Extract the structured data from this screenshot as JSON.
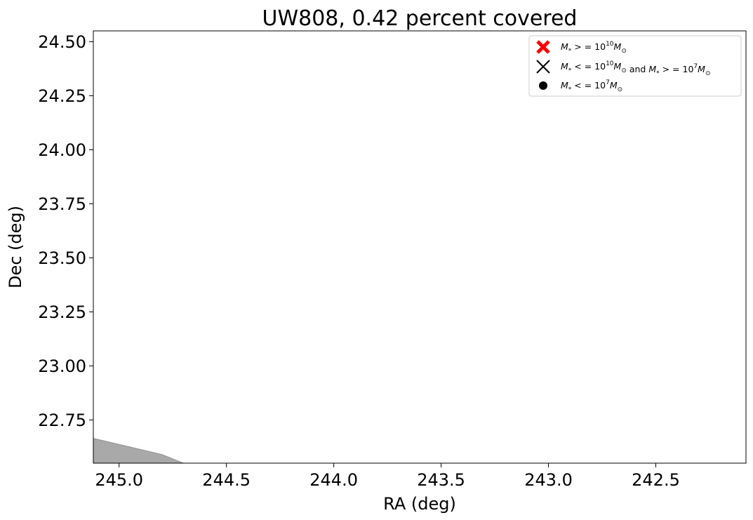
{
  "chart_data": {
    "type": "area",
    "title": "UW808, 0.42 percent covered",
    "xlabel": "RA (deg)",
    "ylabel": "Dec (deg)",
    "xlim": [
      245.12,
      242.08
    ],
    "ylim": [
      22.55,
      24.55
    ],
    "x_inverted": true,
    "grid": false,
    "legend_position": "top-right",
    "x_ticks": [
      245.0,
      244.5,
      244.0,
      243.5,
      243.0,
      242.5
    ],
    "x_tick_labels": [
      "245.0",
      "244.5",
      "244.0",
      "243.5",
      "243.0",
      "242.5"
    ],
    "y_ticks": [
      22.75,
      23.0,
      23.25,
      23.5,
      23.75,
      24.0,
      24.25,
      24.5
    ],
    "y_tick_labels": [
      "22.75",
      "23.00",
      "23.25",
      "23.50",
      "23.75",
      "24.00",
      "24.25",
      "24.50"
    ],
    "coverage_polygon": {
      "color": "#a9a9a9",
      "points": [
        [
          245.12,
          22.665
        ],
        [
          244.8,
          22.59
        ],
        [
          244.7,
          22.55
        ],
        [
          245.12,
          22.55
        ]
      ]
    },
    "legend": [
      {
        "marker": "bold-x",
        "color": "#ff0000",
        "main": "M",
        "sub": "*",
        "rel": " > = 10",
        "sup": "10",
        "tail": "M",
        "tail_sub": "⊙",
        "extra": ""
      },
      {
        "marker": "thin-x",
        "color": "#000000",
        "main": "M",
        "sub": "*",
        "rel": " < = 10",
        "sup": "10",
        "tail": "M",
        "tail_sub": "⊙",
        "extra": " and "
      },
      {
        "marker": "dot",
        "color": "#000000",
        "main": "M",
        "sub": "*",
        "rel": " < = 10",
        "sup": "7",
        "tail": "M",
        "tail_sub": "⊙",
        "extra": ""
      }
    ],
    "legend_line2_extra": {
      "main": "M",
      "sub": "*",
      "rel": " > = 10",
      "sup": "7",
      "tail": "M",
      "tail_sub": "⊙"
    }
  }
}
